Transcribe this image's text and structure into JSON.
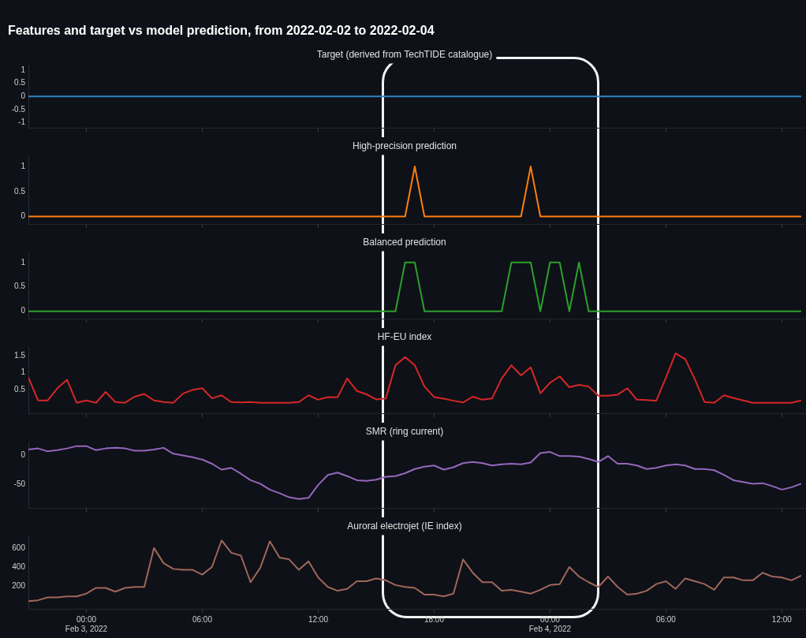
{
  "chart_data": [
    {
      "type": "line",
      "title": "Features and target vs model prediction, from 2022-02-02 to 2022-02-04",
      "subtitle": "Target (derived from TechTIDE catalogue)",
      "color": "#2e86c1",
      "marker": "none",
      "tick_labels": "y",
      "x": [
        "2022-02-02T21:00",
        "2022-02-04T13:00"
      ],
      "values": [
        0,
        0
      ],
      "xlim": [
        "2022-02-02T21:00",
        "2022-02-04T13:15"
      ],
      "xticks": [
        {
          "value": "2022-02-03T00:00",
          "label": null
        },
        {
          "value": "2022-02-03T06:00",
          "label": null
        },
        {
          "value": "2022-02-03T12:00",
          "label": null
        },
        {
          "value": "2022-02-03T18:00",
          "label": null
        },
        {
          "value": "2022-02-04T00:00",
          "label": null
        },
        {
          "value": "2022-02-04T06:00",
          "label": null
        },
        {
          "value": "2022-02-04T12:00",
          "label": null
        }
      ],
      "ylim": [
        -1.2,
        1.2
      ],
      "yticks": [
        -1,
        -0.5,
        0,
        0.5,
        1
      ]
    },
    {
      "type": "line",
      "title": "High-precision prediction",
      "color": "#ff7f0e",
      "marker": "none",
      "tick_labels": "y",
      "x": [
        "2022-02-02T21:00",
        "2022-02-03T16:30",
        "2022-02-03T17:00",
        "2022-02-03T17:30",
        "2022-02-03T22:30",
        "2022-02-03T23:00",
        "2022-02-03T23:30",
        "2022-02-04T13:00"
      ],
      "values": [
        0,
        0,
        1,
        0,
        0,
        1,
        0,
        0
      ],
      "xlim": [
        "2022-02-02T21:00",
        "2022-02-04T13:15"
      ],
      "xticks": [
        {
          "value": "2022-02-03T00:00",
          "label": null
        },
        {
          "value": "2022-02-03T06:00",
          "label": null
        },
        {
          "value": "2022-02-03T12:00",
          "label": null
        },
        {
          "value": "2022-02-03T18:00",
          "label": null
        },
        {
          "value": "2022-02-04T00:00",
          "label": null
        },
        {
          "value": "2022-02-04T06:00",
          "label": null
        },
        {
          "value": "2022-02-04T12:00",
          "label": null
        }
      ],
      "ylim": [
        -0.15,
        1.2
      ],
      "yticks": [
        0,
        0.5,
        1
      ]
    },
    {
      "type": "line",
      "title": "Balanced prediction",
      "color": "#2ca02c",
      "marker": "none",
      "tick_labels": "y",
      "x": [
        "2022-02-02T21:00",
        "2022-02-03T16:00",
        "2022-02-03T16:30",
        "2022-02-03T17:00",
        "2022-02-03T17:30",
        "2022-02-03T21:30",
        "2022-02-03T22:00",
        "2022-02-03T23:00",
        "2022-02-03T23:30",
        "2022-02-04T00:00",
        "2022-02-04T00:30",
        "2022-02-04T01:00",
        "2022-02-04T01:30",
        "2022-02-04T02:00",
        "2022-02-04T13:00"
      ],
      "values": [
        0,
        0,
        1,
        1,
        0,
        0,
        1,
        1,
        0,
        1,
        1,
        0,
        1,
        0,
        0
      ],
      "xlim": [
        "2022-02-02T21:00",
        "2022-02-04T13:15"
      ],
      "xticks": [
        {
          "value": "2022-02-03T00:00",
          "label": null
        },
        {
          "value": "2022-02-03T06:00",
          "label": null
        },
        {
          "value": "2022-02-03T12:00",
          "label": null
        },
        {
          "value": "2022-02-03T18:00",
          "label": null
        },
        {
          "value": "2022-02-04T00:00",
          "label": null
        },
        {
          "value": "2022-02-04T06:00",
          "label": null
        },
        {
          "value": "2022-02-04T12:00",
          "label": null
        }
      ],
      "ylim": [
        -0.15,
        1.2
      ],
      "yticks": [
        0,
        0.5,
        1
      ]
    },
    {
      "type": "line",
      "title": "HF-EU index",
      "color": "#d62728",
      "marker": "none",
      "tick_labels": "y",
      "x": [
        "2022-02-02T21:00",
        "2022-02-02T21:30",
        "2022-02-02T22:00",
        "2022-02-02T22:30",
        "2022-02-02T23:00",
        "2022-02-02T23:30",
        "2022-02-03T00:00",
        "2022-02-03T00:30",
        "2022-02-03T01:00",
        "2022-02-03T01:30",
        "2022-02-03T02:00",
        "2022-02-03T02:30",
        "2022-02-03T03:00",
        "2022-02-03T03:30",
        "2022-02-03T04:00",
        "2022-02-03T04:30",
        "2022-02-03T05:00",
        "2022-02-03T05:30",
        "2022-02-03T06:00",
        "2022-02-03T06:30",
        "2022-02-03T07:00",
        "2022-02-03T07:30",
        "2022-02-03T08:00",
        "2022-02-03T08:30",
        "2022-02-03T09:00",
        "2022-02-03T09:30",
        "2022-02-03T10:00",
        "2022-02-03T10:30",
        "2022-02-03T11:00",
        "2022-02-03T11:30",
        "2022-02-03T12:00",
        "2022-02-03T12:30",
        "2022-02-03T13:00",
        "2022-02-03T13:30",
        "2022-02-03T14:00",
        "2022-02-03T14:30",
        "2022-02-03T15:00",
        "2022-02-03T15:30",
        "2022-02-03T16:00",
        "2022-02-03T16:30",
        "2022-02-03T17:00",
        "2022-02-03T17:30",
        "2022-02-03T18:00",
        "2022-02-03T18:30",
        "2022-02-03T19:00",
        "2022-02-03T19:30",
        "2022-02-03T20:00",
        "2022-02-03T20:30",
        "2022-02-03T21:00",
        "2022-02-03T21:30",
        "2022-02-03T22:00",
        "2022-02-03T22:30",
        "2022-02-03T23:00",
        "2022-02-03T23:30",
        "2022-02-04T00:00",
        "2022-02-04T00:30",
        "2022-02-04T01:00",
        "2022-02-04T01:30",
        "2022-02-04T02:00",
        "2022-02-04T02:30",
        "2022-02-04T03:00",
        "2022-02-04T03:30",
        "2022-02-04T04:00",
        "2022-02-04T04:30",
        "2022-02-04T05:00",
        "2022-02-04T05:30",
        "2022-02-04T06:00",
        "2022-02-04T06:30",
        "2022-02-04T07:00",
        "2022-02-04T07:30",
        "2022-02-04T08:00",
        "2022-02-04T08:30",
        "2022-02-04T09:00",
        "2022-02-04T09:30",
        "2022-02-04T10:00",
        "2022-02-04T10:30",
        "2022-02-04T11:00",
        "2022-02-04T11:30",
        "2022-02-04T12:00",
        "2022-02-04T12:30",
        "2022-02-04T13:00"
      ],
      "values": [
        0.86,
        0.18,
        0.18,
        0.54,
        0.79,
        0.11,
        0.18,
        0.11,
        0.43,
        0.13,
        0.11,
        0.29,
        0.37,
        0.18,
        0.13,
        0.11,
        0.38,
        0.49,
        0.54,
        0.24,
        0.33,
        0.13,
        0.12,
        0.13,
        0.11,
        0.11,
        0.11,
        0.11,
        0.13,
        0.33,
        0.2,
        0.28,
        0.27,
        0.83,
        0.46,
        0.36,
        0.21,
        0.24,
        1.22,
        1.46,
        1.22,
        0.59,
        0.28,
        0.23,
        0.17,
        0.12,
        0.29,
        0.2,
        0.24,
        0.83,
        1.22,
        0.92,
        1.16,
        0.39,
        0.7,
        0.89,
        0.57,
        0.64,
        0.59,
        0.32,
        0.32,
        0.35,
        0.54,
        0.2,
        0.19,
        0.17,
        0.85,
        1.57,
        1.4,
        0.8,
        0.13,
        0.11,
        0.33,
        0.25,
        0.18,
        0.11,
        0.11,
        0.11,
        0.11,
        0.11,
        0.18
      ],
      "xlim": [
        "2022-02-02T21:00",
        "2022-02-04T13:15"
      ],
      "xticks": [
        {
          "value": "2022-02-03T00:00",
          "label": null
        },
        {
          "value": "2022-02-03T06:00",
          "label": null
        },
        {
          "value": "2022-02-03T12:00",
          "label": null
        },
        {
          "value": "2022-02-03T18:00",
          "label": null
        },
        {
          "value": "2022-02-04T00:00",
          "label": null
        },
        {
          "value": "2022-02-04T06:00",
          "label": null
        },
        {
          "value": "2022-02-04T12:00",
          "label": null
        }
      ],
      "ylim": [
        -0.2,
        1.75
      ],
      "yticks": [
        0.5,
        1,
        1.5
      ]
    },
    {
      "type": "line",
      "title": "SMR (ring current)",
      "color": "#9467bd",
      "marker": "none",
      "tick_labels": "y",
      "x": [
        "2022-02-02T21:00",
        "2022-02-02T21:30",
        "2022-02-02T22:00",
        "2022-02-02T22:30",
        "2022-02-02T23:00",
        "2022-02-02T23:30",
        "2022-02-03T00:00",
        "2022-02-03T00:30",
        "2022-02-03T01:00",
        "2022-02-03T01:30",
        "2022-02-03T02:00",
        "2022-02-03T02:30",
        "2022-02-03T03:00",
        "2022-02-03T03:30",
        "2022-02-03T04:00",
        "2022-02-03T04:30",
        "2022-02-03T05:00",
        "2022-02-03T05:30",
        "2022-02-03T06:00",
        "2022-02-03T06:30",
        "2022-02-03T07:00",
        "2022-02-03T07:30",
        "2022-02-03T08:00",
        "2022-02-03T08:30",
        "2022-02-03T09:00",
        "2022-02-03T09:30",
        "2022-02-03T10:00",
        "2022-02-03T10:30",
        "2022-02-03T11:00",
        "2022-02-03T11:30",
        "2022-02-03T12:00",
        "2022-02-03T12:30",
        "2022-02-03T13:00",
        "2022-02-03T13:30",
        "2022-02-03T14:00",
        "2022-02-03T14:30",
        "2022-02-03T15:00",
        "2022-02-03T15:30",
        "2022-02-03T16:00",
        "2022-02-03T16:30",
        "2022-02-03T17:00",
        "2022-02-03T17:30",
        "2022-02-03T18:00",
        "2022-02-03T18:30",
        "2022-02-03T19:00",
        "2022-02-03T19:30",
        "2022-02-03T20:00",
        "2022-02-03T20:30",
        "2022-02-03T21:00",
        "2022-02-03T21:30",
        "2022-02-03T22:00",
        "2022-02-03T22:30",
        "2022-02-03T23:00",
        "2022-02-03T23:30",
        "2022-02-04T00:00",
        "2022-02-04T00:30",
        "2022-02-04T01:00",
        "2022-02-04T01:30",
        "2022-02-04T02:00",
        "2022-02-04T02:30",
        "2022-02-04T03:00",
        "2022-02-04T03:30",
        "2022-02-04T04:00",
        "2022-02-04T04:30",
        "2022-02-04T05:00",
        "2022-02-04T05:30",
        "2022-02-04T06:00",
        "2022-02-04T06:30",
        "2022-02-04T07:00",
        "2022-02-04T07:30",
        "2022-02-04T08:00",
        "2022-02-04T08:30",
        "2022-02-04T09:00",
        "2022-02-04T09:30",
        "2022-02-04T10:00",
        "2022-02-04T10:30",
        "2022-02-04T11:00",
        "2022-02-04T11:30",
        "2022-02-04T12:00",
        "2022-02-04T12:30",
        "2022-02-04T13:00"
      ],
      "values": [
        9,
        11,
        6,
        8,
        11,
        15,
        15,
        8,
        11,
        12,
        11,
        7,
        7,
        9,
        12,
        2,
        -1,
        -4,
        -8,
        -15,
        -25,
        -22,
        -32,
        -43,
        -49,
        -59,
        -65,
        -72,
        -75,
        -73,
        -51,
        -34,
        -30,
        -36,
        -43,
        -44,
        -42,
        -37,
        -36,
        -31,
        -24,
        -20,
        -18,
        -25,
        -21,
        -14,
        -12,
        -14,
        -18,
        -16,
        -15,
        -16,
        -13,
        3,
        5,
        -2,
        -2,
        -3,
        -7,
        -12,
        -2,
        -15,
        -15,
        -18,
        -24,
        -22,
        -18,
        -16,
        -18,
        -24,
        -24,
        -26,
        -34,
        -43,
        -46,
        -49,
        -48,
        -53,
        -59,
        -55,
        -49
      ],
      "xlim": [
        "2022-02-02T21:00",
        "2022-02-04T13:15"
      ],
      "xticks": [
        {
          "value": "2022-02-03T00:00",
          "label": null
        },
        {
          "value": "2022-02-03T06:00",
          "label": null
        },
        {
          "value": "2022-02-03T12:00",
          "label": null
        },
        {
          "value": "2022-02-03T18:00",
          "label": null
        },
        {
          "value": "2022-02-04T00:00",
          "label": null
        },
        {
          "value": "2022-02-04T06:00",
          "label": null
        },
        {
          "value": "2022-02-04T12:00",
          "label": null
        }
      ],
      "ylim": [
        -90,
        22
      ],
      "yticks": [
        -50,
        0
      ]
    },
    {
      "type": "line",
      "title": "Auroral electrojet (IE index)",
      "color": "#a0665a",
      "marker": "none",
      "x": [
        "2022-02-02T21:00",
        "2022-02-02T21:30",
        "2022-02-02T22:00",
        "2022-02-02T22:30",
        "2022-02-02T23:00",
        "2022-02-02T23:30",
        "2022-02-03T00:00",
        "2022-02-03T00:30",
        "2022-02-03T01:00",
        "2022-02-03T01:30",
        "2022-02-03T02:00",
        "2022-02-03T02:30",
        "2022-02-03T03:00",
        "2022-02-03T03:30",
        "2022-02-03T04:00",
        "2022-02-03T04:30",
        "2022-02-03T05:00",
        "2022-02-03T05:30",
        "2022-02-03T06:00",
        "2022-02-03T06:30",
        "2022-02-03T07:00",
        "2022-02-03T07:30",
        "2022-02-03T08:00",
        "2022-02-03T08:30",
        "2022-02-03T09:00",
        "2022-02-03T09:30",
        "2022-02-03T10:00",
        "2022-02-03T10:30",
        "2022-02-03T11:00",
        "2022-02-03T11:30",
        "2022-02-03T12:00",
        "2022-02-03T12:30",
        "2022-02-03T13:00",
        "2022-02-03T13:30",
        "2022-02-03T14:00",
        "2022-02-03T14:30",
        "2022-02-03T15:00",
        "2022-02-03T15:30",
        "2022-02-03T16:00",
        "2022-02-03T16:30",
        "2022-02-03T17:00",
        "2022-02-03T17:30",
        "2022-02-03T18:00",
        "2022-02-03T18:30",
        "2022-02-03T19:00",
        "2022-02-03T19:30",
        "2022-02-03T20:00",
        "2022-02-03T20:30",
        "2022-02-03T21:00",
        "2022-02-03T21:30",
        "2022-02-03T22:00",
        "2022-02-03T22:30",
        "2022-02-03T23:00",
        "2022-02-03T23:30",
        "2022-02-04T00:00",
        "2022-02-04T00:30",
        "2022-02-04T01:00",
        "2022-02-04T01:30",
        "2022-02-04T02:00",
        "2022-02-04T02:30",
        "2022-02-04T03:00",
        "2022-02-04T03:30",
        "2022-02-04T04:00",
        "2022-02-04T04:30",
        "2022-02-04T05:00",
        "2022-02-04T05:30",
        "2022-02-04T06:00",
        "2022-02-04T06:30",
        "2022-02-04T07:00",
        "2022-02-04T07:30",
        "2022-02-04T08:00",
        "2022-02-04T08:30",
        "2022-02-04T09:00",
        "2022-02-04T09:30",
        "2022-02-04T10:00",
        "2022-02-04T10:30",
        "2022-02-04T11:00",
        "2022-02-04T11:30",
        "2022-02-04T12:00",
        "2022-02-04T12:30",
        "2022-02-04T13:00"
      ],
      "values": [
        40,
        50,
        80,
        80,
        90,
        90,
        120,
        180,
        180,
        140,
        180,
        190,
        190,
        600,
        440,
        380,
        370,
        370,
        320,
        400,
        680,
        550,
        520,
        240,
        390,
        670,
        500,
        480,
        370,
        460,
        290,
        190,
        150,
        170,
        250,
        250,
        280,
        260,
        210,
        190,
        180,
        110,
        110,
        90,
        120,
        480,
        340,
        240,
        240,
        150,
        160,
        140,
        120,
        160,
        210,
        220,
        400,
        300,
        240,
        190,
        300,
        190,
        110,
        120,
        150,
        220,
        250,
        170,
        280,
        250,
        220,
        160,
        290,
        290,
        260,
        260,
        340,
        300,
        290,
        260,
        310
      ],
      "xlim": [
        "2022-02-02T21:00",
        "2022-02-04T13:15"
      ],
      "xticks": [
        {
          "value": "2022-02-03T00:00",
          "label": "00:00\nFeb 3, 2022"
        },
        {
          "value": "2022-02-03T06:00",
          "label": "06:00"
        },
        {
          "value": "2022-02-03T12:00",
          "label": "12:00"
        },
        {
          "value": "2022-02-03T18:00",
          "label": "18:00"
        },
        {
          "value": "2022-02-04T00:00",
          "label": "00:00\nFeb 4, 2022"
        },
        {
          "value": "2022-02-04T06:00",
          "label": "06:00"
        },
        {
          "value": "2022-02-04T12:00",
          "label": "12:00"
        }
      ],
      "ylim": [
        -40,
        720
      ],
      "yticks": [
        200,
        400,
        600
      ]
    }
  ]
}
